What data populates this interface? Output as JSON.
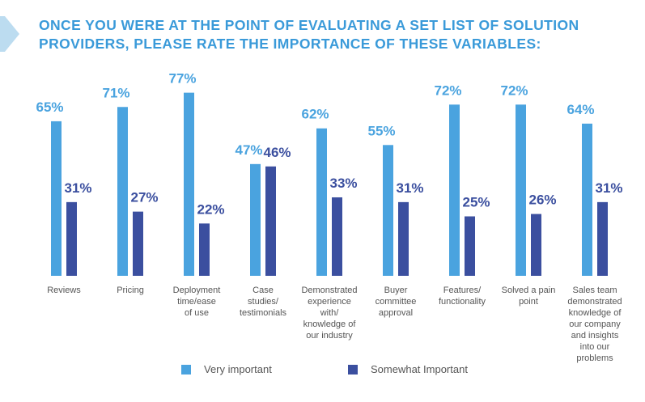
{
  "title": "ONCE YOU WERE AT THE POINT OF EVALUATING A SET LIST OF SOLUTION PROVIDERS, PLEASE RATE THE IMPORTANCE OF THESE VARIABLES:",
  "colors": {
    "very": "#4aa3df",
    "somewhat": "#3b4f9f",
    "title": "#3a9ad9"
  },
  "chart_data": {
    "type": "bar",
    "categories": [
      "Reviews",
      "Pricing",
      "Deployment time/ease of use",
      "Case studies/ testimonials",
      "Demonstrated experience with/ knowledge of our industry",
      "Buyer committee approval",
      "Features/ functionality",
      "Solved a pain point",
      "Sales team demonstrated knowledge of our company and insights into our problems"
    ],
    "category_lines": [
      [
        "Reviews"
      ],
      [
        "Pricing"
      ],
      [
        "Deployment",
        "time/ease",
        "of use"
      ],
      [
        "Case",
        "studies/",
        "testimonials"
      ],
      [
        "Demonstrated",
        "experience",
        "with/",
        "knowledge of",
        "our industry"
      ],
      [
        "Buyer",
        "committee",
        "approval"
      ],
      [
        "Features/",
        "functionality"
      ],
      [
        "Solved a pain",
        "point"
      ],
      [
        "Sales team",
        "demonstrated",
        "knowledge of",
        "our company",
        "and insights",
        "into our",
        "problems"
      ]
    ],
    "series": [
      {
        "name": "Very important",
        "values": [
          65,
          71,
          77,
          47,
          62,
          55,
          72,
          72,
          64
        ]
      },
      {
        "name": "Somewhat Important",
        "values": [
          31,
          27,
          22,
          46,
          33,
          31,
          25,
          26,
          31
        ]
      }
    ],
    "value_labels": [
      [
        "65%",
        "71%",
        "77%",
        "47%",
        "62%",
        "55%",
        "72%",
        "72%",
        "64%"
      ],
      [
        "31%",
        "27%",
        "22%",
        "46%",
        "33%",
        "31%",
        "25%",
        "26%",
        "31%"
      ]
    ],
    "legend": [
      "Very important",
      "Somewhat Important"
    ],
    "legend_position": "bottom",
    "grid": false
  }
}
